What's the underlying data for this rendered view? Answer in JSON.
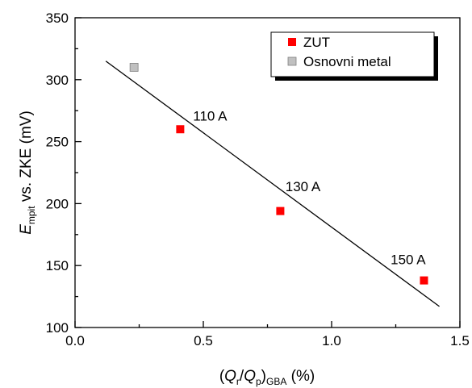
{
  "chart_data": {
    "type": "scatter",
    "xlim": [
      0.0,
      1.5
    ],
    "ylim": [
      100,
      350
    ],
    "x_ticks": [
      0.0,
      0.5,
      1.0,
      1.5
    ],
    "x_tick_labels": [
      "0.0",
      "0.5",
      "1.0",
      "1.5"
    ],
    "y_ticks": [
      100,
      150,
      200,
      250,
      300,
      350
    ],
    "y_tick_labels": [
      "100",
      "150",
      "200",
      "250",
      "300",
      "350"
    ],
    "xlabel": {
      "open": "(",
      "q1": "Q",
      "sub1": "r",
      "slash": "/",
      "q2": "Q",
      "sub2": "p",
      "close": ")",
      "sub3": "GBA",
      "unit": " (%)"
    },
    "ylabel": {
      "main": "E",
      "sub": "mpit",
      "rest": " vs. ZKE (mV)"
    },
    "grid": false,
    "legend_position": "top-right",
    "series": [
      {
        "name": "ZUT",
        "color": "#ff0000",
        "marker": "square",
        "points": [
          {
            "x": 0.41,
            "y": 260
          },
          {
            "x": 0.8,
            "y": 194
          },
          {
            "x": 1.36,
            "y": 138
          }
        ]
      },
      {
        "name": "Osnovni metal",
        "color": "#c0c0c0",
        "marker": "square",
        "points": [
          {
            "x": 0.23,
            "y": 310
          }
        ]
      }
    ],
    "fit_line": {
      "color": "#000000",
      "points": [
        {
          "x": 0.12,
          "y": 315
        },
        {
          "x": 1.42,
          "y": 117
        }
      ]
    },
    "annotations": [
      {
        "text": "110 A",
        "x": 0.46,
        "y": 267
      },
      {
        "text": "130 A",
        "x": 0.82,
        "y": 210
      },
      {
        "text": "150 A",
        "x": 1.23,
        "y": 151
      }
    ]
  }
}
